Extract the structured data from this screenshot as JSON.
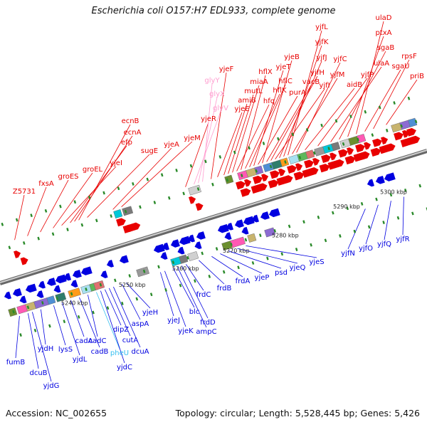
{
  "title": "Escherichia coli O157:H7 EDL933, complete genome",
  "footer": {
    "accession": "Accession: NC_002655",
    "stats": "Topology: circular; Length: 5,528,445 bp; Genes: 5,426"
  },
  "colors": {
    "forward": "#e80000",
    "reverse": "#0000e0",
    "rna": "#ff9ccf",
    "rna_rev": "#35bff0",
    "axis": "#888888",
    "tick": "#2a8a2a"
  },
  "scale_ticks": [
    "5240 kbp",
    "5250 kbp",
    "5260 kbp",
    "5270 kbp",
    "5280 kbp",
    "5290 kbp",
    "5300 kbp"
  ],
  "top_labels": [
    {
      "text": "Z5731",
      "kind": "forward"
    },
    {
      "text": "fxsA",
      "kind": "forward"
    },
    {
      "text": "groES",
      "kind": "forward"
    },
    {
      "text": "groEL",
      "kind": "forward"
    },
    {
      "text": "yjeI",
      "kind": "forward"
    },
    {
      "text": "efp",
      "kind": "forward"
    },
    {
      "text": "ecnA",
      "kind": "forward"
    },
    {
      "text": "ecnB",
      "kind": "forward"
    },
    {
      "text": "sugE",
      "kind": "forward"
    },
    {
      "text": "yjeA",
      "kind": "forward"
    },
    {
      "text": "yjeM",
      "kind": "forward"
    },
    {
      "text": "yjeR",
      "kind": "forward"
    },
    {
      "text": "glyV",
      "kind": "rna"
    },
    {
      "text": "glyX",
      "kind": "rna"
    },
    {
      "text": "glyY",
      "kind": "rna"
    },
    {
      "text": "yjeF",
      "kind": "forward"
    },
    {
      "text": "yjeE",
      "kind": "forward"
    },
    {
      "text": "amiB",
      "kind": "forward"
    },
    {
      "text": "mutL",
      "kind": "forward"
    },
    {
      "text": "miaA",
      "kind": "forward"
    },
    {
      "text": "hfq",
      "kind": "forward"
    },
    {
      "text": "hflX",
      "kind": "forward"
    },
    {
      "text": "hflK",
      "kind": "forward"
    },
    {
      "text": "hflC",
      "kind": "forward"
    },
    {
      "text": "yjeT",
      "kind": "forward"
    },
    {
      "text": "purA",
      "kind": "forward"
    },
    {
      "text": "yjeB",
      "kind": "forward"
    },
    {
      "text": "vacB",
      "kind": "forward"
    },
    {
      "text": "yjfH",
      "kind": "forward"
    },
    {
      "text": "yjfI",
      "kind": "forward"
    },
    {
      "text": "yjfJ",
      "kind": "forward"
    },
    {
      "text": "yjfK",
      "kind": "forward"
    },
    {
      "text": "yjfL",
      "kind": "forward"
    },
    {
      "text": "yjfM",
      "kind": "forward"
    },
    {
      "text": "yjfC",
      "kind": "forward"
    },
    {
      "text": "aidB",
      "kind": "forward"
    },
    {
      "text": "yjfP",
      "kind": "forward"
    },
    {
      "text": "ulaA",
      "kind": "forward"
    },
    {
      "text": "sgaB",
      "kind": "forward"
    },
    {
      "text": "ptxA",
      "kind": "forward"
    },
    {
      "text": "ulaD",
      "kind": "forward"
    },
    {
      "text": "sgaU",
      "kind": "forward"
    },
    {
      "text": "rpsF",
      "kind": "forward"
    },
    {
      "text": "priB",
      "kind": "forward"
    }
  ],
  "bottom_labels": [
    {
      "text": "fumB",
      "kind": "reverse"
    },
    {
      "text": "dcuB",
      "kind": "reverse"
    },
    {
      "text": "yjdG",
      "kind": "reverse"
    },
    {
      "text": "yjdH",
      "kind": "reverse"
    },
    {
      "text": "lysS",
      "kind": "reverse"
    },
    {
      "text": "yjdL",
      "kind": "reverse"
    },
    {
      "text": "cadA",
      "kind": "reverse"
    },
    {
      "text": "cadB",
      "kind": "reverse"
    },
    {
      "text": "cadC",
      "kind": "reverse"
    },
    {
      "text": "pheU",
      "kind": "rna_rev"
    },
    {
      "text": "yjdC",
      "kind": "reverse"
    },
    {
      "text": "dipZ",
      "kind": "reverse"
    },
    {
      "text": "cutA",
      "kind": "reverse"
    },
    {
      "text": "dcuA",
      "kind": "reverse"
    },
    {
      "text": "aspA",
      "kind": "reverse"
    },
    {
      "text": "yjeH",
      "kind": "reverse"
    },
    {
      "text": "yjeJ",
      "kind": "reverse"
    },
    {
      "text": "yjeK",
      "kind": "reverse"
    },
    {
      "text": "blc",
      "kind": "reverse"
    },
    {
      "text": "ampC",
      "kind": "reverse"
    },
    {
      "text": "frdD",
      "kind": "reverse"
    },
    {
      "text": "frdC",
      "kind": "reverse"
    },
    {
      "text": "frdB",
      "kind": "reverse"
    },
    {
      "text": "frdA",
      "kind": "reverse"
    },
    {
      "text": "yjeP",
      "kind": "reverse"
    },
    {
      "text": "psd",
      "kind": "reverse"
    },
    {
      "text": "yjeQ",
      "kind": "reverse"
    },
    {
      "text": "yjeS",
      "kind": "reverse"
    },
    {
      "text": "yjfN",
      "kind": "reverse"
    },
    {
      "text": "yjfO",
      "kind": "reverse"
    },
    {
      "text": "yjfQ",
      "kind": "reverse"
    },
    {
      "text": "yjfR",
      "kind": "reverse"
    }
  ]
}
